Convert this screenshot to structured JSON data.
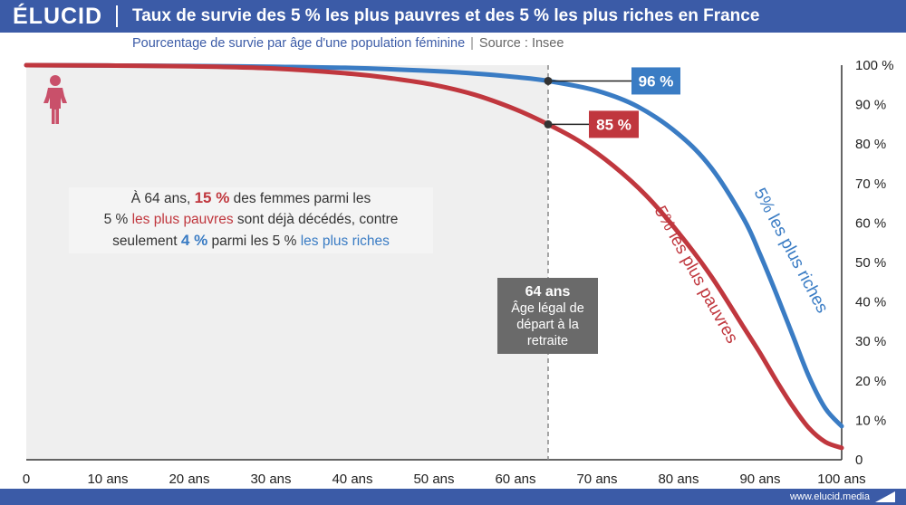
{
  "header": {
    "logo": "ÉLUCID",
    "title": "Taux de survie des 5 % les plus pauvres et des 5 % les plus riches en France"
  },
  "subtitle": {
    "text": "Pourcentage de survie par âge d'une population féminine",
    "separator": "|",
    "source": "Source : Insee"
  },
  "footer": {
    "url": "www.elucid.media"
  },
  "icons": {
    "person": "woman-icon"
  },
  "colors": {
    "rich": "#3a7cc4",
    "poor": "#c0373e",
    "header": "#3b5ba7",
    "retirement_box": "#6a6a6a"
  },
  "annotation": {
    "p1": "À 64 ans, ",
    "v1": "15 %",
    "p2": " des femmes parmi les",
    "p3": "5 % ",
    "p4": "les plus pauvres",
    "p5": " sont déjà décédés, contre",
    "p6": "seulement ",
    "v2": "4 %",
    "p7": " parmi les 5 % ",
    "p8": "les plus riches"
  },
  "retirement": {
    "age": "64 ans",
    "line1": "Âge légal de",
    "line2": "départ à la",
    "line3": "retraite"
  },
  "chart_data": {
    "type": "line",
    "title": "Taux de survie des 5 % les plus pauvres et des 5 % les plus riches en France",
    "subtitle": "Pourcentage de survie par âge d'une population féminine",
    "x_ticks": [
      "0",
      "10 ans",
      "20 ans",
      "30 ans",
      "40 ans",
      "50 ans",
      "60 ans",
      "70 ans",
      "80 ans",
      "90 ans",
      "100 ans"
    ],
    "y_ticks": [
      "0",
      "10 %",
      "20 %",
      "30 %",
      "40 %",
      "50 %",
      "60 %",
      "70 %",
      "80 %",
      "90 %",
      "100 %"
    ],
    "xlim": [
      0,
      100
    ],
    "ylim": [
      0,
      100
    ],
    "grid": false,
    "vertical_marker": {
      "x": 64
    },
    "series": [
      {
        "name": "5% les plus riches",
        "color": "#3a7cc4",
        "x": [
          0,
          10,
          20,
          30,
          40,
          50,
          55,
          60,
          64,
          70,
          75,
          80,
          84,
          88,
          90,
          92,
          94,
          96,
          98,
          100
        ],
        "y": [
          100,
          99.9,
          99.8,
          99.6,
          99.3,
          98.5,
          97.9,
          97.0,
          96,
          93.5,
          89.5,
          82.5,
          74,
          61,
          52,
          42,
          31.5,
          21,
          13,
          8.5
        ]
      },
      {
        "name": "5% les plus pauvres",
        "color": "#c0373e",
        "x": [
          0,
          10,
          20,
          30,
          40,
          45,
          50,
          55,
          60,
          64,
          68,
          72,
          76,
          80,
          84,
          88,
          90,
          92,
          94,
          96,
          98,
          100
        ],
        "y": [
          100,
          99.9,
          99.7,
          99.2,
          97.8,
          96.6,
          95.0,
          92.5,
          88.8,
          85,
          80.5,
          74.5,
          67,
          57.5,
          46.5,
          33.5,
          27,
          20,
          13.5,
          8,
          4.5,
          3
        ]
      }
    ],
    "callouts": [
      {
        "series": "5% les plus riches",
        "x": 64,
        "value": 96,
        "label": "96 %"
      },
      {
        "series": "5% les plus pauvres",
        "x": 64,
        "value": 85,
        "label": "85 %"
      }
    ]
  }
}
